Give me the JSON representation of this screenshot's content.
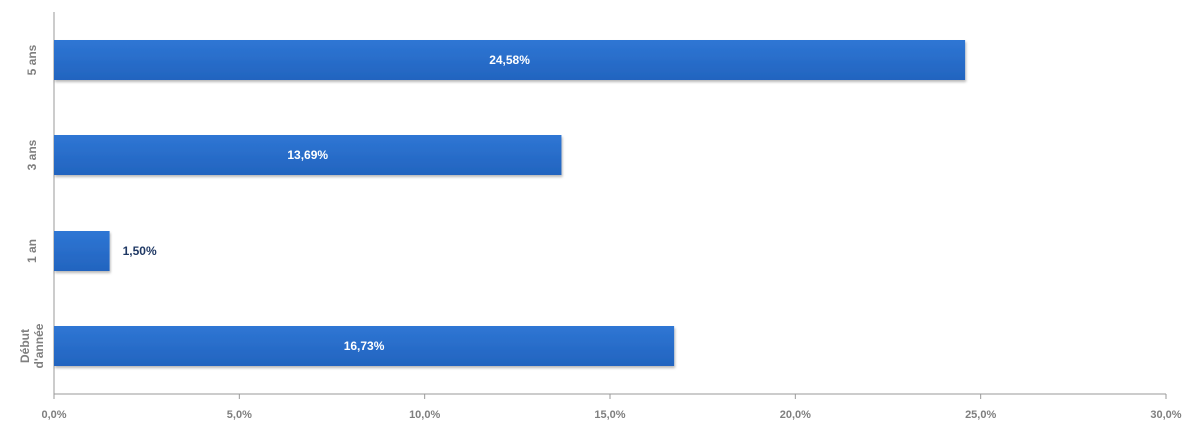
{
  "chart_data": {
    "type": "bar",
    "orientation": "horizontal",
    "categories": [
      "5 ans",
      "3 ans",
      "1 an",
      "Début d'année"
    ],
    "category_lines": [
      [
        "5 ans"
      ],
      [
        "3 ans"
      ],
      [
        "1 an"
      ],
      [
        "Début",
        "d'année"
      ]
    ],
    "values": [
      24.58,
      13.69,
      1.5,
      16.73
    ],
    "value_labels": [
      "24,58%",
      "13,69%",
      "1,50%",
      "16,73%"
    ],
    "xlim": [
      0,
      30
    ],
    "x_ticks": [
      0,
      5,
      10,
      15,
      20,
      25,
      30
    ],
    "x_tick_labels": [
      "0,0%",
      "5,0%",
      "10,0%",
      "15,0%",
      "20,0%",
      "25,0%",
      "30,0%"
    ],
    "grid": false,
    "bar_color": "#2a6fcc",
    "bar_color_dark": "#1b5fb8"
  }
}
